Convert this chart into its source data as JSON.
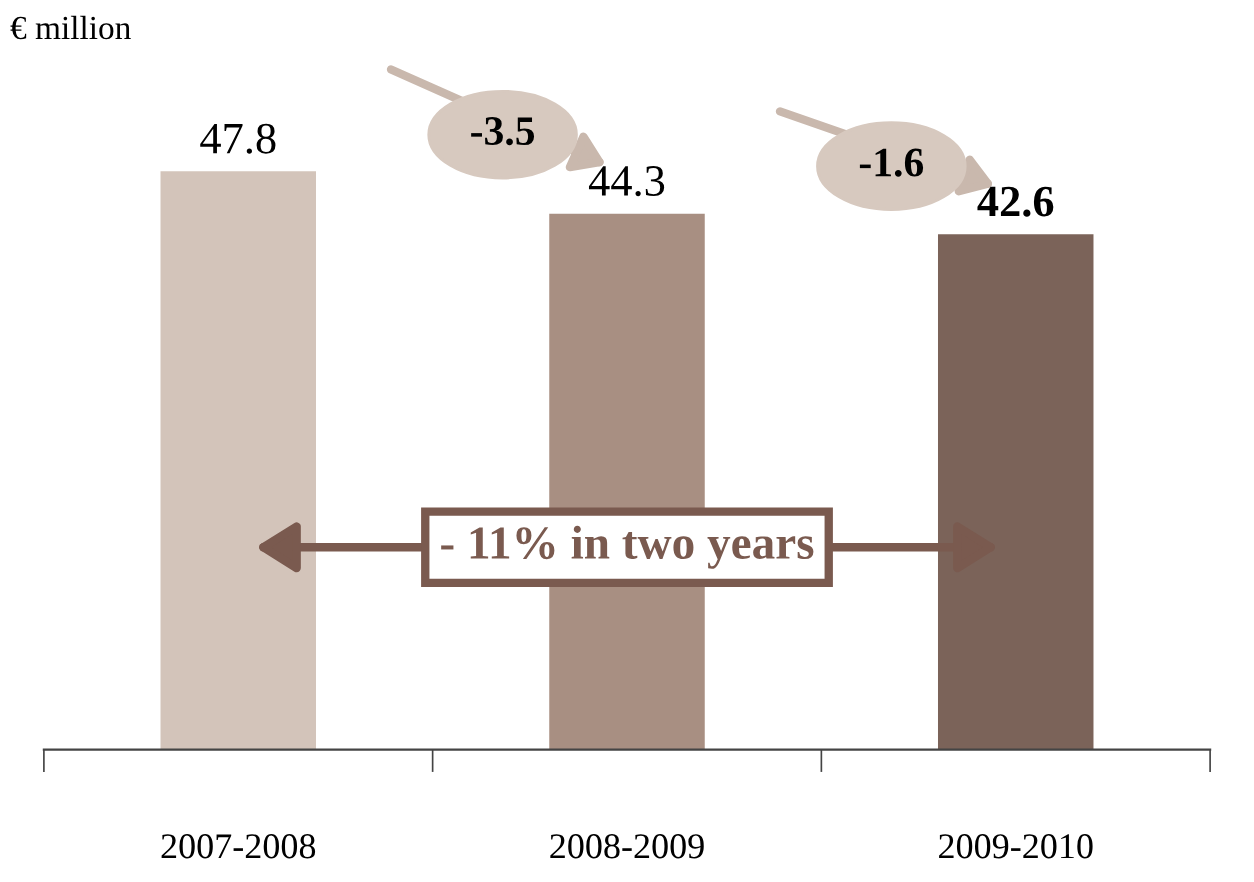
{
  "chart_data": {
    "type": "bar",
    "categories": [
      "2007-2008",
      "2008-2009",
      "2009-2010"
    ],
    "values": [
      47.8,
      44.3,
      42.6
    ],
    "colors": [
      "#d3c4ba",
      "#a88f82",
      "#7b6359"
    ],
    "data_labels": true,
    "annotations": [
      "€ million",
      "-3.5",
      "-1.6",
      "- 11% in two years"
    ]
  }
}
